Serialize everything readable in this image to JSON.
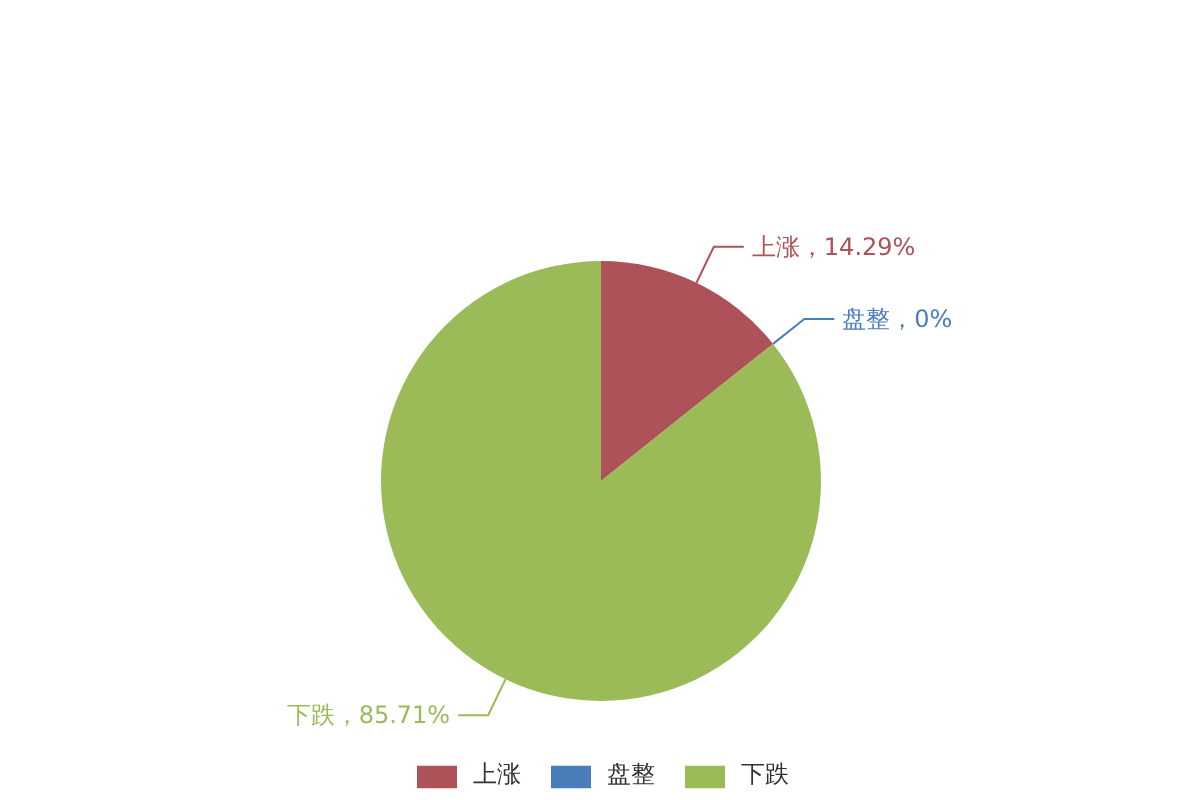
{
  "chart_data": {
    "type": "pie",
    "categories": [
      "上涨",
      "盘整",
      "下跌"
    ],
    "values": [
      14.29,
      0,
      85.71
    ],
    "colors": [
      "#ad5258",
      "#4a7ebb",
      "#9bbb59"
    ],
    "value_labels": [
      "上涨，14.29%",
      "盘整，0%",
      "下跌，85.71%"
    ],
    "legend": "bottom"
  }
}
